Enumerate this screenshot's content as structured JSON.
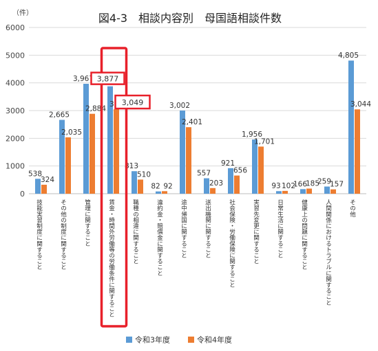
{
  "chart_data": {
    "type": "bar",
    "title": "図4-3　相談内容別　母国語相談件数",
    "ylabel": "（件）",
    "ylim": [
      0,
      6000
    ],
    "yticks": [
      0,
      1000,
      2000,
      3000,
      4000,
      5000,
      6000
    ],
    "grid": true,
    "legend_position": "bottom",
    "categories": [
      "技能実習制度に関すること",
      "その他の制度に関すること",
      "管理に関すること",
      "賃金・時間外労働等の労働条件に関すること",
      "職種の相違に関すること",
      "違約金・賠償金に関すること",
      "途中帰国に関すること",
      "送出機関に関すること",
      "社会保険・労働保険に関すること",
      "実習先変更に関すること",
      "日常生活に関すること",
      "健康上の問題に関すること",
      "人間関係におけるトラブルに関すること",
      "その他"
    ],
    "series": [
      {
        "name": "令和3年度",
        "color": "#5b9bd5",
        "values": [
          538,
          2665,
          3967,
          3877,
          813,
          82,
          3002,
          557,
          921,
          1956,
          93,
          166,
          259,
          4805
        ],
        "labels": [
          "538",
          "2,665",
          "3,967",
          "3,877",
          "813",
          "82",
          "3,002",
          "557",
          "921",
          "1,956",
          "93",
          "166",
          "259",
          "4,805"
        ]
      },
      {
        "name": "令和4年度",
        "color": "#ed7d31",
        "values": [
          324,
          2035,
          2884,
          3049,
          510,
          92,
          2401,
          203,
          656,
          1701,
          102,
          185,
          157,
          3044
        ],
        "labels": [
          "324",
          "2,035",
          "2,884",
          "3,049",
          "510",
          "92",
          "2,401",
          "203",
          "656",
          "1,701",
          "102",
          "185",
          "157",
          "3,044"
        ]
      }
    ],
    "highlight_color": "#e8202a",
    "highlight": {
      "category_index": 3,
      "labels": [
        "3,877",
        "3,049"
      ]
    }
  }
}
